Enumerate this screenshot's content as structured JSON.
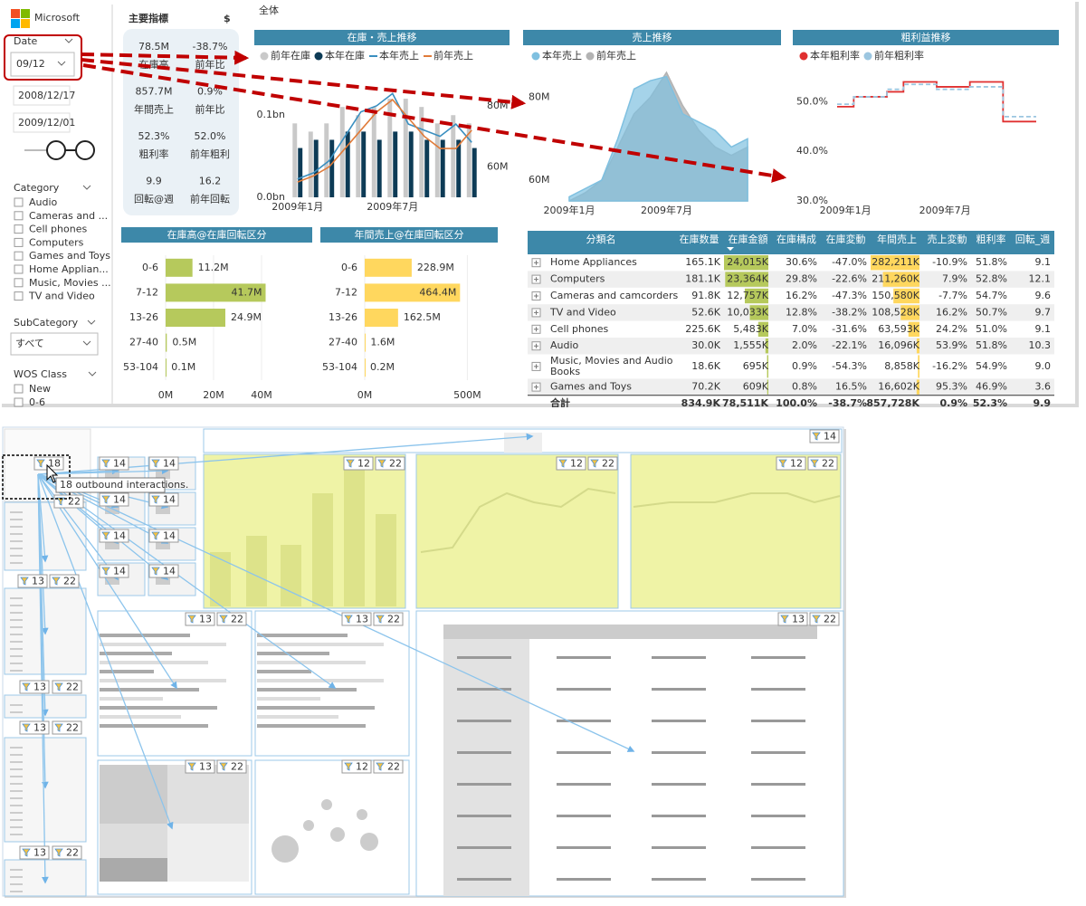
{
  "header": {
    "logo": "Microsoft",
    "page_title": "全体"
  },
  "filters": {
    "date_label": "Date",
    "date_value": "09/12",
    "date_from": "2008/12/17",
    "date_to": "2009/12/01",
    "category_label": "Category",
    "categories": [
      "Audio",
      "Cameras and ...",
      "Cell phones",
      "Computers",
      "Games and Toys",
      "Home Applian...",
      "Music, Movies ...",
      "TV and Video"
    ],
    "subcategory_label": "SubCategory",
    "subcategory_value": "すべて",
    "wos_label": "WOS Class",
    "wos_items": [
      "New",
      "0-6"
    ]
  },
  "kpi": {
    "title": "主要指標",
    "currency": "$",
    "items": [
      {
        "value": "78.5M",
        "label": "在庫高"
      },
      {
        "value": "-38.7%",
        "label": "前年比"
      },
      {
        "value": "857.7M",
        "label": "年間売上"
      },
      {
        "value": "0.9%",
        "label": "前年比"
      },
      {
        "value": "52.3%",
        "label": "粗利率"
      },
      {
        "value": "52.0%",
        "label": "前年粗利"
      },
      {
        "value": "9.9",
        "label": "回転@週"
      },
      {
        "value": "16.2",
        "label": "前年回転"
      }
    ]
  },
  "charts": [
    {
      "type": "combo",
      "title": "在庫・売上推移",
      "categories": [
        "2009年1月",
        null,
        null,
        null,
        null,
        null,
        "2009年7月",
        null,
        null,
        null,
        null,
        null
      ],
      "ylim": [
        0,
        0.13
      ],
      "yticks": [
        {
          "value": 0,
          "label": "0.0bn"
        },
        {
          "value": 0.1,
          "label": "0.1bn"
        }
      ],
      "y2lim": [
        50,
        85
      ],
      "y2ticks": [
        {
          "value": 60,
          "label": "60M"
        },
        {
          "value": 80,
          "label": "80M"
        }
      ],
      "series": [
        {
          "name": "前年在庫",
          "type": "bar",
          "color": "#c9c9c9",
          "values": [
            0.09,
            0.08,
            0.09,
            0.11,
            0.1,
            0.11,
            0.12,
            0.12,
            0.11,
            0.09,
            0.1,
            0.09
          ]
        },
        {
          "name": "本年在庫",
          "type": "bar",
          "color": "#0d3b56",
          "values": [
            0.06,
            0.07,
            0.07,
            0.08,
            0.08,
            0.07,
            0.08,
            0.08,
            0.07,
            0.07,
            0.07,
            0.06
          ]
        },
        {
          "name": "本年売上",
          "type": "line",
          "axis": "y2",
          "color": "#3a8fc0",
          "values": [
            56,
            58,
            62,
            70,
            78,
            80,
            84,
            74,
            72,
            70,
            74,
            68
          ]
        },
        {
          "name": "前年売上",
          "type": "line",
          "axis": "y2",
          "color": "#e07b39",
          "values": [
            55,
            57,
            60,
            66,
            72,
            78,
            82,
            76,
            70,
            66,
            66,
            72
          ]
        }
      ]
    },
    {
      "type": "area",
      "title": "売上推移",
      "categories": [
        "2009年1月",
        null,
        null,
        null,
        null,
        null,
        "2009年7月",
        null,
        null,
        null,
        null,
        null
      ],
      "ylim": [
        55,
        86
      ],
      "yticks": [
        {
          "value": 60,
          "label": "60M"
        },
        {
          "value": 80,
          "label": "80M"
        }
      ],
      "series": [
        {
          "name": "本年売上",
          "color": "#7fc0e0",
          "values": [
            56,
            58,
            60,
            70,
            82,
            84,
            85,
            76,
            74,
            72,
            68,
            70
          ]
        },
        {
          "name": "前年売上",
          "color": "#b3b3b3",
          "values": [
            55,
            57,
            60,
            68,
            76,
            80,
            86,
            78,
            72,
            68,
            66,
            68
          ]
        }
      ]
    },
    {
      "type": "step",
      "title": "粗利益推移",
      "categories": [
        "2009年1月",
        null,
        null,
        null,
        null,
        null,
        "2009年7月",
        null,
        null,
        null,
        null,
        null
      ],
      "ylim": [
        30,
        55
      ],
      "yticks": [
        {
          "value": 30,
          "label": "30.0%"
        },
        {
          "value": 40,
          "label": "40.0%"
        },
        {
          "value": 50,
          "label": "50.0%"
        }
      ],
      "series": [
        {
          "name": "本年粗利率",
          "color": "#e03030",
          "dashed": false,
          "values": [
            49,
            51,
            51,
            52,
            54,
            54,
            53,
            53,
            54,
            54,
            46,
            46
          ]
        },
        {
          "name": "前年粗利率",
          "color": "#9cc6e0",
          "dashed": true,
          "values": [
            49.5,
            51,
            51,
            52.5,
            53.5,
            53.5,
            52.5,
            52.5,
            53,
            53,
            47,
            47
          ]
        }
      ]
    },
    {
      "type": "hbar",
      "title": "在庫高@在庫回転区分",
      "color": "#b6c95c",
      "categories": [
        "0-6",
        "7-12",
        "13-26",
        "27-40",
        "53-104"
      ],
      "values": [
        11.2,
        41.7,
        24.9,
        0.5,
        0.1
      ],
      "value_labels": [
        "11.2M",
        "41.7M",
        "24.9M",
        "0.5M",
        "0.1M"
      ],
      "xlim": [
        0,
        55
      ],
      "xticks": [
        {
          "value": 0,
          "label": "0M"
        },
        {
          "value": 20,
          "label": "20M"
        },
        {
          "value": 40,
          "label": "40M"
        }
      ]
    },
    {
      "type": "hbar",
      "title": "年間売上@在庫回転区分",
      "color": "#ffd75e",
      "categories": [
        "0-6",
        "7-12",
        "13-26",
        "27-40",
        "53-104"
      ],
      "values": [
        228.9,
        464.4,
        162.5,
        1.6,
        0.2
      ],
      "value_labels": [
        "228.9M",
        "464.4M",
        "162.5M",
        "1.6M",
        "0.2M"
      ],
      "xlim": [
        0,
        560
      ],
      "xticks": [
        {
          "value": 0,
          "label": "0M"
        },
        {
          "value": 500,
          "label": "500M"
        }
      ]
    }
  ],
  "table": {
    "columns": [
      "分類名",
      "在庫数量",
      "在庫金額",
      "在庫構成",
      "在庫変動",
      "年間売上",
      "売上変動",
      "粗利率",
      "回転_週"
    ],
    "rows": [
      [
        "Home Appliances",
        "165.1K",
        "24,015K",
        "30.6%",
        "-47.0%",
        "282,211K",
        "-10.9%",
        "51.8%",
        "9.1"
      ],
      [
        "Computers",
        "181.1K",
        "23,364K",
        "29.8%",
        "-22.6%",
        "211,260K",
        "7.9%",
        "52.8%",
        "12.1"
      ],
      [
        "Cameras and camcorders",
        "91.8K",
        "12,757K",
        "16.2%",
        "-47.3%",
        "150,580K",
        "-7.7%",
        "54.7%",
        "9.6"
      ],
      [
        "TV and Video",
        "52.6K",
        "10,033K",
        "12.8%",
        "-38.2%",
        "108,528K",
        "16.2%",
        "50.7%",
        "9.7"
      ],
      [
        "Cell phones",
        "225.6K",
        "5,483K",
        "7.0%",
        "-31.6%",
        "63,593K",
        "24.2%",
        "51.0%",
        "9.1"
      ],
      [
        "Audio",
        "30.0K",
        "1,555K",
        "2.0%",
        "-22.1%",
        "16,096K",
        "53.9%",
        "51.8%",
        "10.3"
      ],
      [
        "Music, Movies and Audio Books",
        "18.6K",
        "695K",
        "0.9%",
        "-54.3%",
        "8,858K",
        "-16.2%",
        "54.9%",
        "9.0"
      ],
      [
        "Games and Toys",
        "70.2K",
        "609K",
        "0.8%",
        "16.5%",
        "16,602K",
        "95.3%",
        "46.9%",
        "3.6"
      ]
    ],
    "total": [
      "合計",
      "834.9K",
      "78,511K",
      "100.0%",
      "-38.7%",
      "857,728K",
      "0.9%",
      "52.3%",
      "9.9"
    ]
  },
  "interaction_view": {
    "tooltip": "18 outbound interactions.",
    "badges": [
      14,
      18,
      14,
      14,
      12,
      22,
      12,
      22,
      12,
      22,
      14,
      14,
      22,
      14,
      14,
      14,
      14,
      13,
      22,
      13,
      22,
      13,
      22,
      13,
      22,
      13,
      22,
      13,
      22,
      13,
      22,
      12,
      22,
      13,
      22
    ]
  }
}
